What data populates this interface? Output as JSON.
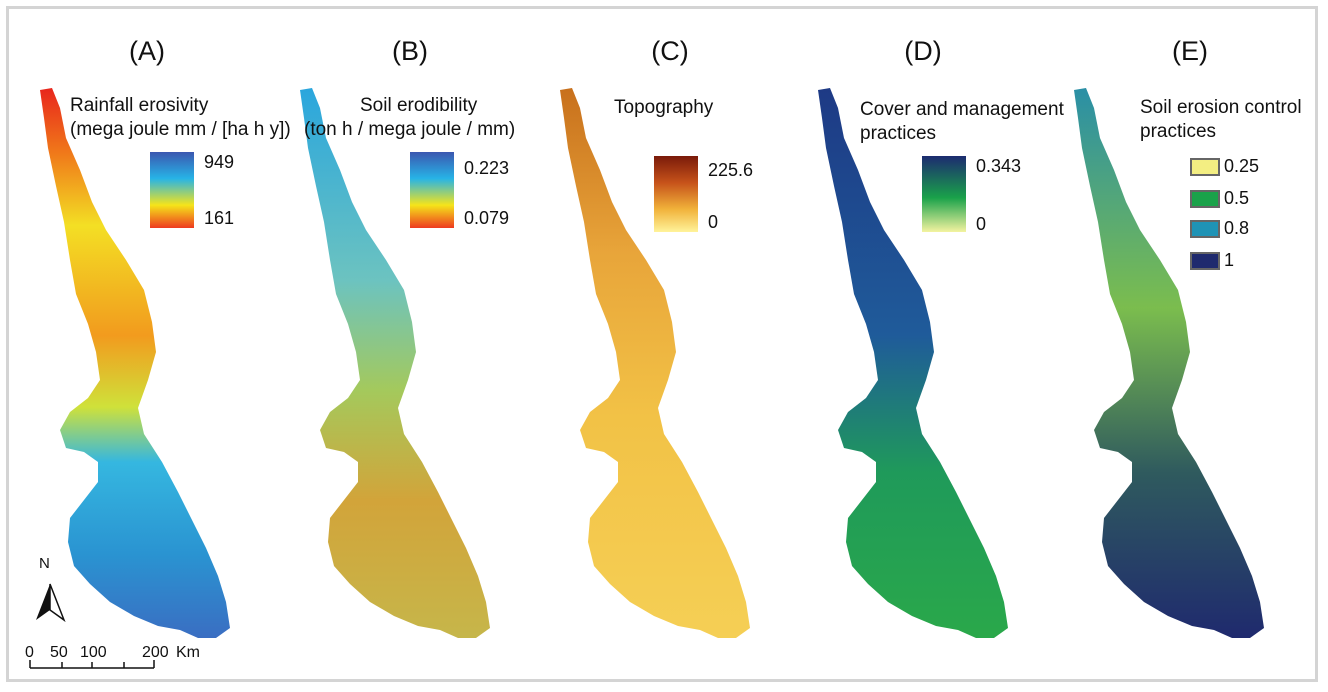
{
  "panels": [
    {
      "letter": "(A)",
      "title_line1": "Rainfall erosivity",
      "title_line2": "(mega joule mm / [ha h y])",
      "legend_max": "949",
      "legend_min": "161"
    },
    {
      "letter": "(B)",
      "title_line1": "Soil erodibility",
      "title_line2": "(ton h / mega joule / mm)",
      "legend_max": "0.223",
      "legend_min": "0.079"
    },
    {
      "letter": "(C)",
      "title_line1": "Topography",
      "legend_max": "225.6",
      "legend_min": "0"
    },
    {
      "letter": "(D)",
      "title_line1": "Cover and management",
      "title_line2": "practices",
      "legend_max": "0.343",
      "legend_min": "0"
    },
    {
      "letter": "(E)",
      "title_line1": "Soil erosion control",
      "title_line2": "practices",
      "classes": [
        {
          "label": "0.25",
          "color": "#f3ee82"
        },
        {
          "label": "0.5",
          "color": "#1aa24a"
        },
        {
          "label": "0.8",
          "color": "#1f93b5"
        },
        {
          "label": "1",
          "color": "#1f2a6e"
        }
      ]
    }
  ],
  "north_arrow": "N",
  "scale": {
    "ticks": [
      "0",
      "50",
      "100",
      "200"
    ],
    "unit": "Km"
  },
  "colors": {
    "erosivity_ramp": [
      "#3b57b0",
      "#27b4e6",
      "#f5e41a",
      "#ee3a1f"
    ],
    "erodibility_ramp": [
      "#3b57b0",
      "#27b4e6",
      "#f5e41a",
      "#ee3a1f"
    ],
    "topography_ramp": [
      "#7a1a0a",
      "#c6521a",
      "#f1b23a",
      "#fff39a"
    ],
    "cover_ramp": [
      "#1c2b70",
      "#1aa24a",
      "#f3f3a0"
    ]
  }
}
